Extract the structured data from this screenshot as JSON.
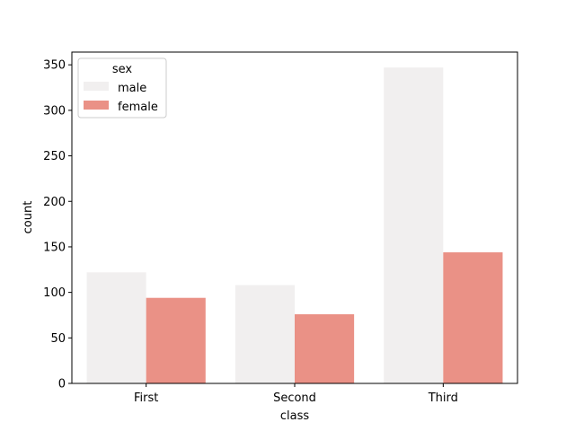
{
  "chart_data": {
    "type": "bar",
    "categories": [
      "First",
      "Second",
      "Third"
    ],
    "series": [
      {
        "name": "male",
        "values": [
          122,
          108,
          347
        ],
        "color": "#f1efef"
      },
      {
        "name": "female",
        "values": [
          94,
          76,
          144
        ],
        "color": "#ea9186"
      }
    ],
    "xlabel": "class",
    "ylabel": "count",
    "ylim": [
      0,
      364
    ],
    "yticks": [
      0,
      50,
      100,
      150,
      200,
      250,
      300,
      350
    ],
    "legend": {
      "title": "sex",
      "placement": "top-left"
    },
    "grid": false
  }
}
